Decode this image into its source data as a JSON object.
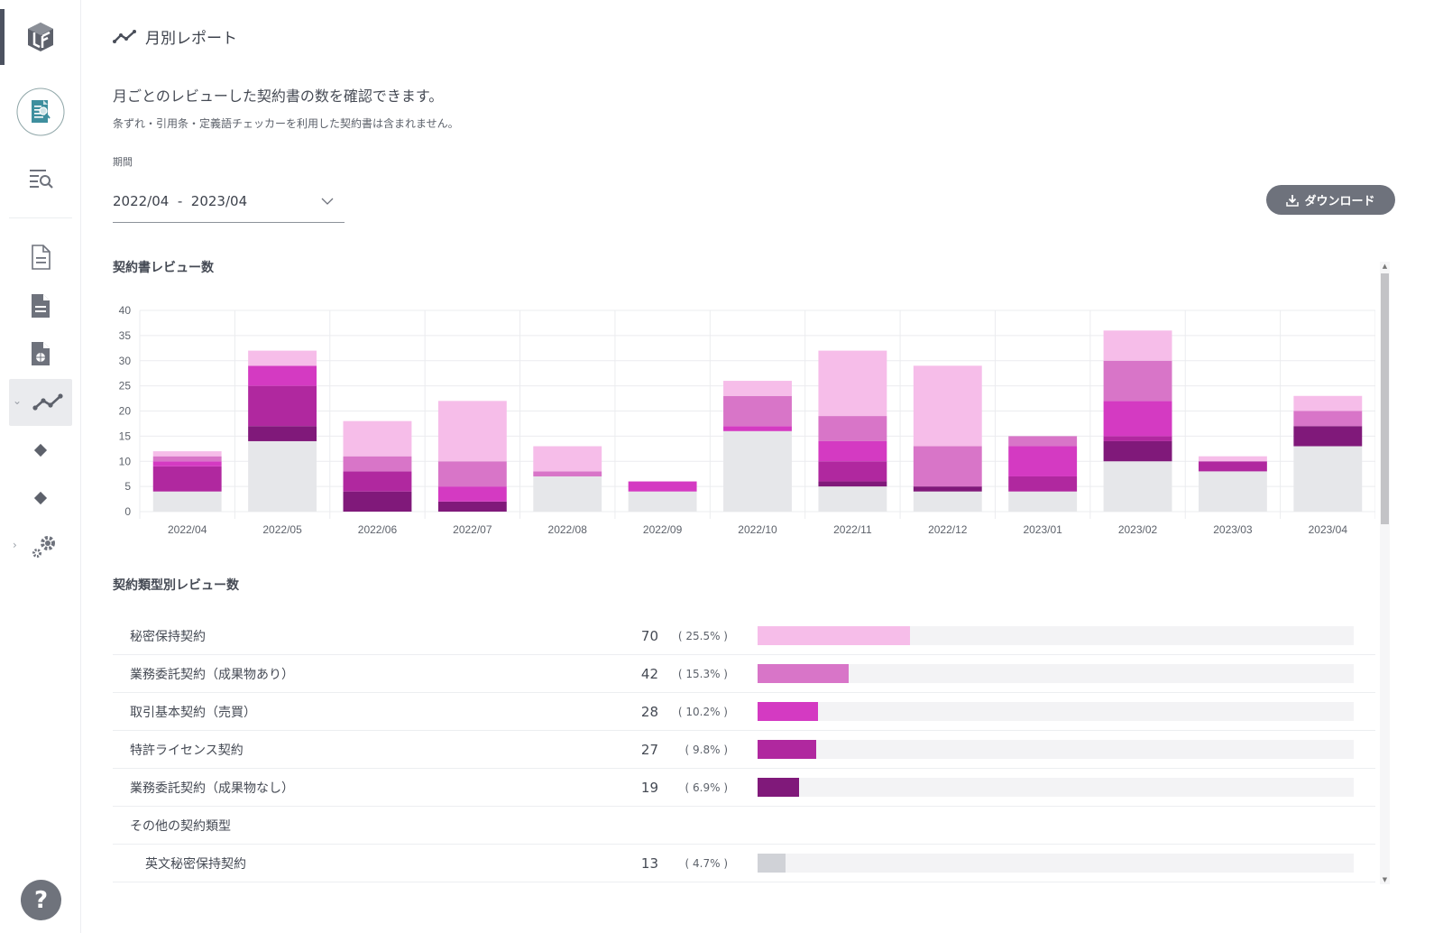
{
  "sidebar": {
    "items": [
      {
        "icon": "logo-icon"
      },
      {
        "icon": "contract-review-icon"
      },
      {
        "icon": "search-list-icon"
      },
      {
        "icon": "document-outline-icon"
      },
      {
        "icon": "document-filled-icon"
      },
      {
        "icon": "document-shield-icon"
      },
      {
        "icon": "line-chart-icon",
        "active": true
      },
      {
        "icon": "diamond-icon"
      },
      {
        "icon": "diamond-icon"
      },
      {
        "icon": "gears-icon"
      }
    ],
    "help_label": "?"
  },
  "header": {
    "title": "月別レポート",
    "description": "月ごとのレビューした契約書の数を確認できます。",
    "note": "条ずれ・引用条・定義語チェッカーを利用した契約書は含まれません。"
  },
  "period": {
    "label": "期間",
    "value": "2022/04  -  2023/04"
  },
  "download": {
    "label": "ダウンロード"
  },
  "colors": {
    "nda": "#f6bde9",
    "outsourcing_with": "#d875c8",
    "basic_trade": "#d43ac2",
    "patent": "#b0289f",
    "outsourcing_without": "#80197a",
    "other": "#e6e7ea",
    "track": "#f3f3f5"
  },
  "chart_data": {
    "type": "bar",
    "stacked": true,
    "title": "契約書レビュー数",
    "xlabel": "",
    "ylabel": "",
    "ylim": [
      0,
      40
    ],
    "yticks": [
      0,
      5,
      10,
      15,
      20,
      25,
      30,
      35,
      40
    ],
    "grid": true,
    "categories": [
      "2022/04",
      "2022/05",
      "2022/06",
      "2022/07",
      "2022/08",
      "2022/09",
      "2022/10",
      "2022/11",
      "2022/12",
      "2023/01",
      "2023/02",
      "2023/03",
      "2023/04"
    ],
    "series": [
      {
        "name": "その他の契約類型",
        "color_key": "other",
        "values": [
          4,
          14,
          0,
          0,
          7,
          4,
          16,
          5,
          4,
          4,
          10,
          8,
          13
        ]
      },
      {
        "name": "業務委託契約（成果物なし）",
        "color_key": "outsourcing_without",
        "values": [
          0,
          3,
          4,
          2,
          0,
          0,
          0,
          1,
          1,
          0,
          4,
          0,
          4
        ]
      },
      {
        "name": "特許ライセンス契約",
        "color_key": "patent",
        "values": [
          5,
          8,
          4,
          0,
          0,
          0,
          0,
          4,
          0,
          3,
          1,
          2,
          0
        ]
      },
      {
        "name": "取引基本契約（売買）",
        "color_key": "basic_trade",
        "values": [
          1,
          4,
          0,
          3,
          0,
          2,
          1,
          4,
          0,
          6,
          7,
          0,
          0
        ]
      },
      {
        "name": "業務委託契約（成果物あり）",
        "color_key": "outsourcing_with",
        "values": [
          1,
          0,
          3,
          5,
          1,
          0,
          6,
          5,
          8,
          2,
          8,
          0,
          3
        ]
      },
      {
        "name": "秘密保持契約",
        "color_key": "nda",
        "values": [
          1,
          3,
          7,
          12,
          5,
          0,
          3,
          13,
          16,
          0,
          6,
          1,
          3
        ]
      }
    ]
  },
  "type_section": {
    "title": "契約類型別レビュー数",
    "rows": [
      {
        "name": "秘密保持契約",
        "count": "70",
        "pct_label": "( 25.5% )",
        "percent": 25.5,
        "color_key": "nda"
      },
      {
        "name": "業務委託契約（成果物あり）",
        "count": "42",
        "pct_label": "( 15.3% )",
        "percent": 15.3,
        "color_key": "outsourcing_with"
      },
      {
        "name": "取引基本契約（売買）",
        "count": "28",
        "pct_label": "( 10.2% )",
        "percent": 10.2,
        "color_key": "basic_trade"
      },
      {
        "name": "特許ライセンス契約",
        "count": "27",
        "pct_label": "( 9.8% )",
        "percent": 9.8,
        "color_key": "patent"
      },
      {
        "name": "業務委託契約（成果物なし）",
        "count": "19",
        "pct_label": "( 6.9% )",
        "percent": 6.9,
        "color_key": "outsourcing_without"
      },
      {
        "name": "その他の契約類型",
        "group": true
      },
      {
        "name": "英文秘密保持契約",
        "count": "13",
        "pct_label": "( 4.7% )",
        "percent": 4.7,
        "color_key": "other_bar",
        "sub": true
      }
    ]
  }
}
